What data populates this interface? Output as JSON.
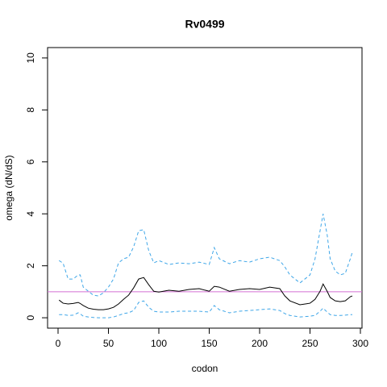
{
  "chart_data": {
    "type": "line",
    "title": "Rv0499",
    "x_label": "codon",
    "y_label": "omega (dN/dS)",
    "x": [
      1,
      5,
      10,
      15,
      20,
      22,
      25,
      30,
      35,
      40,
      45,
      50,
      55,
      60,
      65,
      70,
      75,
      80,
      85,
      90,
      95,
      100,
      110,
      120,
      130,
      140,
      150,
      155,
      160,
      170,
      180,
      190,
      200,
      210,
      220,
      225,
      230,
      240,
      250,
      255,
      260,
      263,
      267,
      270,
      275,
      280,
      285,
      290,
      292
    ],
    "series": [
      {
        "color": "#000000",
        "dashed": false,
        "values": [
          0.68,
          0.56,
          0.53,
          0.55,
          0.59,
          0.55,
          0.47,
          0.37,
          0.33,
          0.31,
          0.31,
          0.34,
          0.4,
          0.53,
          0.71,
          0.87,
          1.15,
          1.49,
          1.55,
          1.27,
          1.02,
          0.99,
          1.06,
          1.02,
          1.09,
          1.12,
          1.02,
          1.21,
          1.18,
          1.02,
          1.09,
          1.12,
          1.09,
          1.18,
          1.12,
          0.84,
          0.65,
          0.5,
          0.56,
          0.71,
          1.02,
          1.3,
          1.02,
          0.78,
          0.65,
          0.62,
          0.65,
          0.81,
          0.84
        ]
      },
      {
        "color": "#3ea6e8",
        "dashed": true,
        "values": [
          2.2,
          2.1,
          1.49,
          1.49,
          1.65,
          1.65,
          1.18,
          1.02,
          0.87,
          0.84,
          0.96,
          1.18,
          1.49,
          2.11,
          2.27,
          2.33,
          2.73,
          3.35,
          3.39,
          2.58,
          2.11,
          2.2,
          2.05,
          2.11,
          2.08,
          2.14,
          2.05,
          2.7,
          2.27,
          2.08,
          2.2,
          2.14,
          2.27,
          2.33,
          2.2,
          1.96,
          1.65,
          1.34,
          1.65,
          2.27,
          3.35,
          4.0,
          3.2,
          2.27,
          1.8,
          1.65,
          1.71,
          2.27,
          2.52
        ]
      },
      {
        "color": "#3ea6e8",
        "dashed": true,
        "values": [
          0.12,
          0.12,
          0.09,
          0.1,
          0.19,
          0.15,
          0.06,
          0.03,
          0.01,
          0,
          0,
          0,
          0.03,
          0.09,
          0.16,
          0.19,
          0.28,
          0.59,
          0.65,
          0.4,
          0.25,
          0.22,
          0.22,
          0.25,
          0.25,
          0.25,
          0.22,
          0.47,
          0.31,
          0.19,
          0.25,
          0.28,
          0.31,
          0.34,
          0.28,
          0.16,
          0.09,
          0.03,
          0.06,
          0.09,
          0.25,
          0.37,
          0.22,
          0.12,
          0.09,
          0.09,
          0.1,
          0.12,
          0.12
        ]
      }
    ],
    "hline": {
      "value": 1,
      "color": "#d46fd4"
    },
    "xlim": [
      -10.4,
      301.6
    ],
    "xticks": [
      0,
      50,
      100,
      150,
      200,
      250,
      300
    ],
    "ylim": [
      -0.4,
      10.4
    ],
    "yticks": [
      0,
      2,
      4,
      6,
      8,
      10
    ]
  }
}
